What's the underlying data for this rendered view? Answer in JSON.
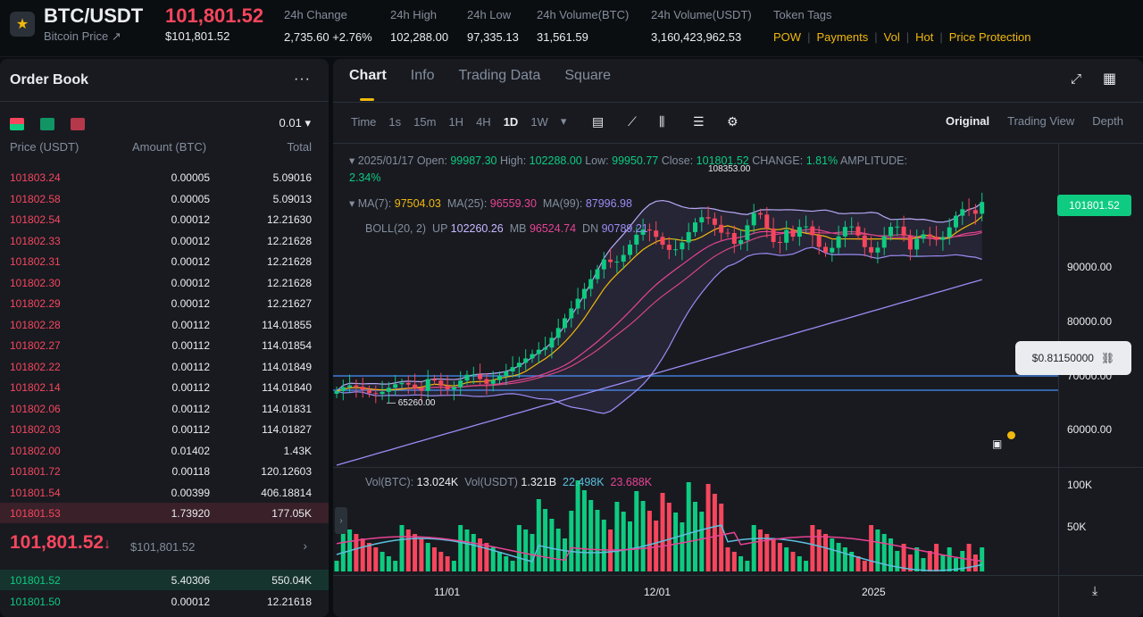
{
  "header": {
    "symbol": "BTC/USDT",
    "subtitle": "Bitcoin Price ↗",
    "last_price": "101,801.52",
    "last_price_usd": "$101,801.52",
    "stats": [
      {
        "label": "24h Change",
        "value": "2,735.60 +2.76%",
        "color": "#0ecb81"
      },
      {
        "label": "24h High",
        "value": "102,288.00"
      },
      {
        "label": "24h Low",
        "value": "97,335.13"
      },
      {
        "label": "24h Volume(BTC)",
        "value": "31,561.59"
      },
      {
        "label": "24h Volume(USDT)",
        "value": "3,160,423,962.53"
      }
    ],
    "tags_label": "Token Tags",
    "tags": [
      "POW",
      "Payments",
      "Vol",
      "Hot",
      "Price Protection"
    ]
  },
  "orderbook": {
    "title": "Order Book",
    "more": "···",
    "tick": "0.01 ▾",
    "headers": [
      "Price (USDT)",
      "Amount (BTC)",
      "Total"
    ],
    "asks": [
      [
        "101803.24",
        "0.00005",
        "5.09016"
      ],
      [
        "101802.58",
        "0.00005",
        "5.09013"
      ],
      [
        "101802.54",
        "0.00012",
        "12.21630"
      ],
      [
        "101802.33",
        "0.00012",
        "12.21628"
      ],
      [
        "101802.31",
        "0.00012",
        "12.21628"
      ],
      [
        "101802.30",
        "0.00012",
        "12.21628"
      ],
      [
        "101802.29",
        "0.00012",
        "12.21627"
      ],
      [
        "101802.28",
        "0.00112",
        "114.01855"
      ],
      [
        "101802.27",
        "0.00112",
        "114.01854"
      ],
      [
        "101802.22",
        "0.00112",
        "114.01849"
      ],
      [
        "101802.14",
        "0.00112",
        "114.01840"
      ],
      [
        "101802.06",
        "0.00112",
        "114.01831"
      ],
      [
        "101802.03",
        "0.00112",
        "114.01827"
      ],
      [
        "101802.00",
        "0.01402",
        "1.43K"
      ],
      [
        "101801.72",
        "0.00118",
        "120.12603"
      ],
      [
        "101801.54",
        "0.00399",
        "406.18814"
      ],
      [
        "101801.53",
        "1.73920",
        "177.05K"
      ]
    ],
    "mid_price": "101,801.52",
    "mid_arrow": "↓",
    "mid_usd": "$101,801.52",
    "mid_more": "›",
    "bids": [
      [
        "101801.52",
        "5.40306",
        "550.04K"
      ],
      [
        "101801.50",
        "0.00012",
        "12.21618"
      ]
    ]
  },
  "chart_panel": {
    "tabs": [
      "Chart",
      "Info",
      "Trading Data",
      "Square"
    ],
    "intervals": [
      "Time",
      "1s",
      "15m",
      "1H",
      "4H",
      "1D",
      "1W"
    ],
    "active_interval": "1D",
    "views": [
      "Original",
      "Trading View",
      "Depth"
    ],
    "active_view": "Original",
    "ohlc": {
      "date": "2025/01/17",
      "open_label": "Open:",
      "open": "99987.30",
      "high_label": "High:",
      "high": "102288.00",
      "low_label": "Low:",
      "low": "99950.77",
      "close_label": "Close:",
      "close": "101801.52",
      "change_label": "CHANGE:",
      "change": "1.81%",
      "amplitude_label": "AMPLITUDE:",
      "amplitude": "2.34%"
    },
    "ma": {
      "ma7_label": "MA(7):",
      "ma7": "97504.03",
      "ma25_label": "MA(25):",
      "ma25": "96559.30",
      "ma99_label": "MA(99):",
      "ma99": "87996.98"
    },
    "boll": {
      "label": "BOLL(20, 2)",
      "up_label": "UP",
      "up": "102260.26",
      "mb_label": "MB",
      "mb": "96524.74",
      "dn_label": "DN",
      "dn": "90789.21"
    },
    "high_marker": "108353.00",
    "low_marker": "65260.00",
    "price_badge": "101801.52",
    "quote_badge": "$0.81150000",
    "vol": {
      "btc_label": "Vol(BTC):",
      "btc": "13.024K",
      "usdt_label": "Vol(USDT)",
      "usdt": "1.321B",
      "ma1": "22.498K",
      "ma2": "23.688K"
    },
    "y_labels": [
      "90000.00",
      "80000.00",
      "70000.00",
      "60000.00"
    ],
    "vol_y_labels": [
      "100K",
      "50K"
    ],
    "x_labels": [
      "11/01",
      "12/01",
      "2025"
    ],
    "colors": {
      "up": "#0ecb81",
      "down": "#f6465d",
      "ma7": "#f0b90b",
      "ma25": "#e84393",
      "ma99": "#9b8cf5",
      "accent": "#f0b90b"
    }
  },
  "chart_data": {
    "type": "candlestick",
    "x_labels": [
      "11/01",
      "12/01",
      "2025"
    ],
    "ylim": [
      55000,
      110000
    ],
    "last_close": 101801.52,
    "marked_high": 108353.0,
    "marked_low": 65260.0
  }
}
